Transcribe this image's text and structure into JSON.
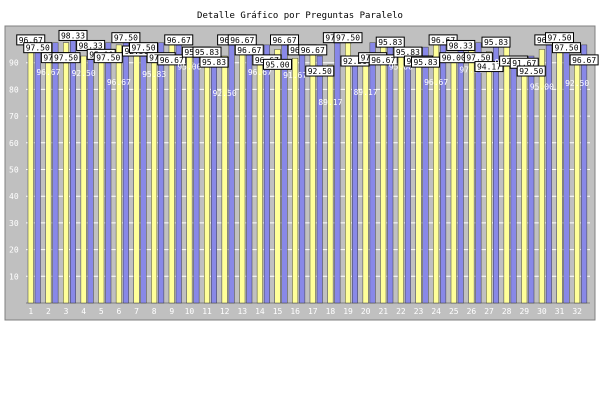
{
  "chart_data": {
    "type": "bar",
    "title": "Detalle Gráfico por Preguntas Paralelo",
    "xlabel": "",
    "ylabel": "",
    "ylim": [
      0,
      100
    ],
    "yticks": [
      10,
      20,
      30,
      40,
      50,
      60,
      70,
      80,
      90
    ],
    "grid": true,
    "legend": "none",
    "categories": [
      "1",
      "2",
      "3",
      "4",
      "5",
      "6",
      "7",
      "8",
      "9",
      "10",
      "11",
      "12",
      "13",
      "14",
      "15",
      "16",
      "17",
      "18",
      "19",
      "20",
      "21",
      "22",
      "23",
      "24",
      "25",
      "26",
      "27",
      "28",
      "29",
      "30",
      "31",
      "32"
    ],
    "series": [
      {
        "color": "#ffff99",
        "values": [
          96.67,
          96.67,
          97.5,
          92.5,
          95.0,
          96.67,
          92.5,
          95.83,
          96.67,
          95.0,
          95.83,
          92.5,
          96.67,
          96.67,
          95.0,
          91.67,
          96.67,
          89.17,
          97.5,
          89.17,
          96.67,
          95.0,
          92.5,
          96.67,
          90.0,
          97.5,
          94.17,
          96.67,
          91.67,
          95.0,
          97.5,
          92.5
        ],
        "labels": [
          "96.67",
          "96.67",
          "97.50",
          "92.50",
          "95.00",
          "96.67",
          "92.50",
          "95.83",
          "96.67",
          "95.00",
          "95.83",
          "92.50",
          "96.67",
          "96.67",
          "95.00",
          "91.67",
          "96.67",
          "89.17",
          "97.50",
          "89.17",
          "96.67",
          "95.00",
          "92.50",
          "96.67",
          "90.00",
          "97.50",
          "94.17",
          "96.67",
          "91.67",
          "95.00",
          "97.50",
          "92.50"
        ]
      },
      {
        "color": "#8888e8",
        "values": [
          97.5,
          97.5,
          98.33,
          98.33,
          97.5,
          97.5,
          97.5,
          97.5,
          96.67,
          95.83,
          95.83,
          96.67,
          96.67,
          96.67,
          96.67,
          96.67,
          92.5,
          97.5,
          92.5,
          97.5,
          95.83,
          95.83,
          95.83,
          96.67,
          98.33,
          97.5,
          95.83,
          92.5,
          92.5,
          96.67,
          97.5,
          96.67
        ],
        "labels": [
          "97.50",
          "97.50",
          "98.33",
          "98.33",
          "97.50",
          "97.50",
          "97.50",
          "97.50",
          "96.67",
          "95.83",
          "95.83",
          "96.67",
          "96.67",
          "96.67",
          "96.67",
          "96.67",
          "92.50",
          "97.50",
          "92.50",
          "97.50",
          "95.83",
          "95.83",
          "95.83",
          "96.67",
          "98.33",
          "97.50",
          "95.83",
          "92.50",
          "92.50",
          "96.67",
          "97.50",
          "96.67"
        ]
      }
    ],
    "colors": {
      "background": "#c0c0c0",
      "grid": "#ffffff",
      "page": "#ffffff"
    }
  }
}
